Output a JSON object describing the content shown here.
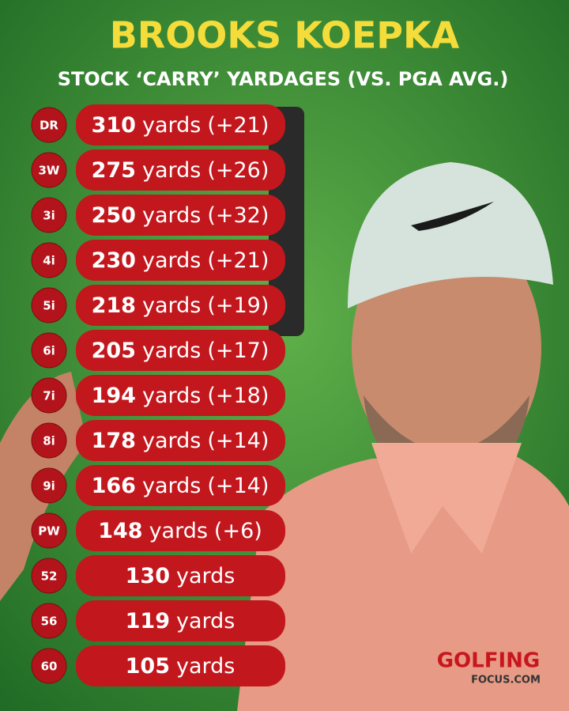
{
  "header": {
    "title": "BROOKS KOEPKA",
    "subtitle": "STOCK ‘CARRY’ YARDAGES (VS. PGA AVG.)"
  },
  "rows": [
    {
      "club": "DR",
      "carry": 310,
      "unit": "yards",
      "diff": "(+21)"
    },
    {
      "club": "3W",
      "carry": 275,
      "unit": "yards",
      "diff": "(+26)"
    },
    {
      "club": "3i",
      "carry": 250,
      "unit": "yards",
      "diff": "(+32)"
    },
    {
      "club": "4i",
      "carry": 230,
      "unit": "yards",
      "diff": "(+21)"
    },
    {
      "club": "5i",
      "carry": 218,
      "unit": "yards",
      "diff": "(+19)"
    },
    {
      "club": "6i",
      "carry": 205,
      "unit": "yards",
      "diff": "(+17)"
    },
    {
      "club": "7i",
      "carry": 194,
      "unit": "yards",
      "diff": "(+18)"
    },
    {
      "club": "8i",
      "carry": 178,
      "unit": "yards",
      "diff": "(+14)"
    },
    {
      "club": "9i",
      "carry": 166,
      "unit": "yards",
      "diff": "(+14)"
    },
    {
      "club": "PW",
      "carry": 148,
      "unit": "yards",
      "diff": "(+6)"
    },
    {
      "club": "52",
      "carry": 130,
      "unit": "yards"
    },
    {
      "club": "56",
      "carry": 119,
      "unit": "yards"
    },
    {
      "club": "60",
      "carry": 105,
      "unit": "yards"
    }
  ],
  "logo": {
    "brand": "GOLFING",
    "site": "FOCUS.COM"
  }
}
